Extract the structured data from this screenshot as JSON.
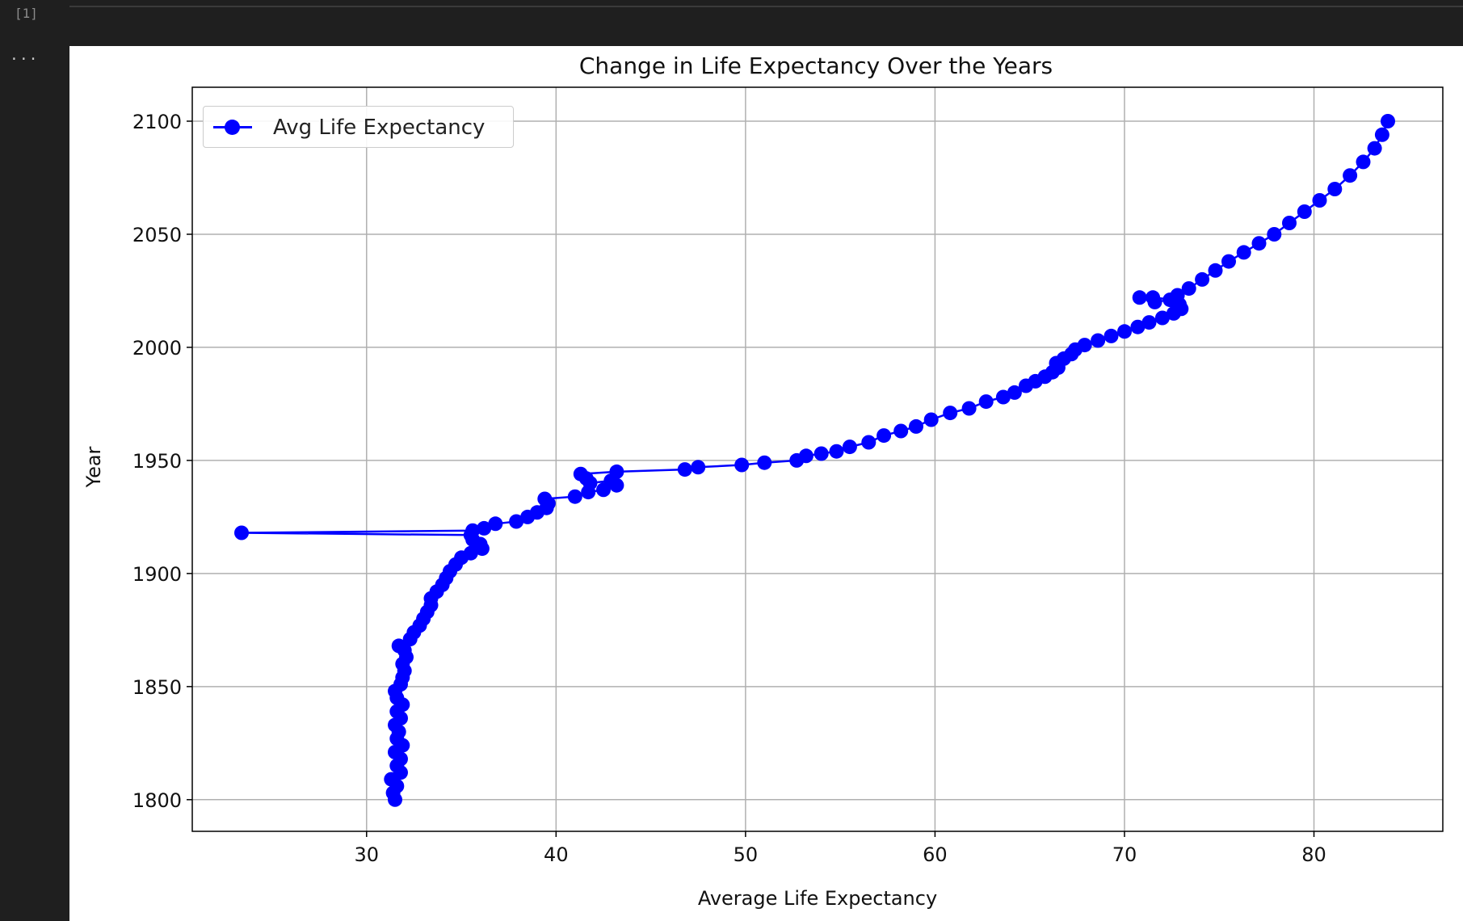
{
  "notebook": {
    "execution_count": "[1]",
    "more_actions_label": "..."
  },
  "chart_data": {
    "type": "line",
    "title": "Change in Life Expectancy Over the Years",
    "xlabel": "Average Life Expectancy",
    "ylabel": "Year",
    "xlim": [
      20.8,
      86.8
    ],
    "ylim": [
      1786,
      2115
    ],
    "xticks": [
      30,
      40,
      50,
      60,
      70,
      80
    ],
    "yticks": [
      1800,
      1850,
      1900,
      1950,
      2000,
      2050,
      2100
    ],
    "grid": true,
    "legend_position": "upper-left",
    "colors": {
      "series": "#0000ff",
      "grid": "#b0b0b0"
    },
    "series": [
      {
        "name": "Avg Life Expectancy",
        "marker": "circle",
        "points": [
          [
            31.5,
            1800
          ],
          [
            31.4,
            1803
          ],
          [
            31.6,
            1806
          ],
          [
            31.3,
            1809
          ],
          [
            31.8,
            1812
          ],
          [
            31.6,
            1815
          ],
          [
            31.8,
            1818
          ],
          [
            31.5,
            1821
          ],
          [
            31.9,
            1824
          ],
          [
            31.6,
            1827
          ],
          [
            31.7,
            1830
          ],
          [
            31.5,
            1833
          ],
          [
            31.8,
            1836
          ],
          [
            31.6,
            1839
          ],
          [
            31.9,
            1842
          ],
          [
            31.6,
            1845
          ],
          [
            31.5,
            1848
          ],
          [
            31.8,
            1851
          ],
          [
            31.9,
            1854
          ],
          [
            32.0,
            1857
          ],
          [
            31.9,
            1860
          ],
          [
            32.1,
            1863
          ],
          [
            32.0,
            1866
          ],
          [
            31.7,
            1868
          ],
          [
            32.3,
            1871
          ],
          [
            32.5,
            1874
          ],
          [
            32.8,
            1877
          ],
          [
            33.0,
            1880
          ],
          [
            33.2,
            1883
          ],
          [
            33.4,
            1886
          ],
          [
            33.4,
            1889
          ],
          [
            33.7,
            1892
          ],
          [
            34.0,
            1895
          ],
          [
            34.2,
            1898
          ],
          [
            34.4,
            1901
          ],
          [
            34.7,
            1904
          ],
          [
            35.0,
            1907
          ],
          [
            35.5,
            1909
          ],
          [
            36.1,
            1911
          ],
          [
            36.0,
            1913
          ],
          [
            35.6,
            1915
          ],
          [
            35.5,
            1917
          ],
          [
            23.4,
            1918
          ],
          [
            35.6,
            1919
          ],
          [
            36.2,
            1920
          ],
          [
            36.8,
            1922
          ],
          [
            37.9,
            1923
          ],
          [
            38.5,
            1925
          ],
          [
            39.0,
            1927
          ],
          [
            39.5,
            1929
          ],
          [
            39.6,
            1931
          ],
          [
            39.4,
            1933
          ],
          [
            41.0,
            1934
          ],
          [
            41.7,
            1936
          ],
          [
            42.5,
            1937
          ],
          [
            43.2,
            1939
          ],
          [
            42.9,
            1941
          ],
          [
            41.8,
            1940
          ],
          [
            41.6,
            1942
          ],
          [
            41.3,
            1944
          ],
          [
            43.2,
            1945
          ],
          [
            46.8,
            1946
          ],
          [
            47.5,
            1947
          ],
          [
            49.8,
            1948
          ],
          [
            51.0,
            1949
          ],
          [
            52.7,
            1950
          ],
          [
            53.2,
            1952
          ],
          [
            54.0,
            1953
          ],
          [
            54.8,
            1954
          ],
          [
            55.5,
            1956
          ],
          [
            56.5,
            1958
          ],
          [
            57.3,
            1961
          ],
          [
            58.2,
            1963
          ],
          [
            59.0,
            1965
          ],
          [
            59.8,
            1968
          ],
          [
            60.8,
            1971
          ],
          [
            61.8,
            1973
          ],
          [
            62.7,
            1976
          ],
          [
            63.6,
            1978
          ],
          [
            64.2,
            1980
          ],
          [
            64.8,
            1983
          ],
          [
            65.3,
            1985
          ],
          [
            65.8,
            1987
          ],
          [
            66.2,
            1989
          ],
          [
            66.5,
            1991
          ],
          [
            66.4,
            1993
          ],
          [
            66.8,
            1995
          ],
          [
            67.2,
            1997
          ],
          [
            67.4,
            1999
          ],
          [
            67.9,
            2001
          ],
          [
            68.6,
            2003
          ],
          [
            69.3,
            2005
          ],
          [
            70.0,
            2007
          ],
          [
            70.7,
            2009
          ],
          [
            71.3,
            2011
          ],
          [
            72.0,
            2013
          ],
          [
            72.6,
            2015
          ],
          [
            73.0,
            2017
          ],
          [
            72.9,
            2019
          ],
          [
            72.6,
            2021
          ],
          [
            71.5,
            2022
          ],
          [
            70.8,
            2022
          ],
          [
            71.6,
            2020
          ],
          [
            72.4,
            2021
          ],
          [
            72.8,
            2023
          ],
          [
            73.4,
            2026
          ],
          [
            74.1,
            2030
          ],
          [
            74.8,
            2034
          ],
          [
            75.5,
            2038
          ],
          [
            76.3,
            2042
          ],
          [
            77.1,
            2046
          ],
          [
            77.9,
            2050
          ],
          [
            78.7,
            2055
          ],
          [
            79.5,
            2060
          ],
          [
            80.3,
            2065
          ],
          [
            81.1,
            2070
          ],
          [
            81.9,
            2076
          ],
          [
            82.6,
            2082
          ],
          [
            83.2,
            2088
          ],
          [
            83.6,
            2094
          ],
          [
            83.9,
            2100
          ]
        ]
      }
    ]
  }
}
